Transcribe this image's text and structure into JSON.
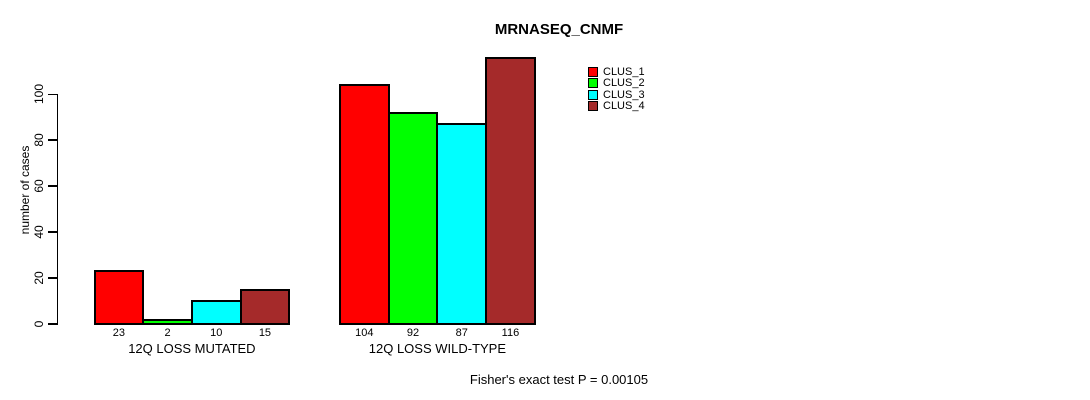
{
  "chart_data": {
    "type": "bar",
    "title": "MRNASEQ_CNMF",
    "ylabel": "number of cases",
    "xlabel": "",
    "categories": [
      "12Q LOSS MUTATED",
      "12Q LOSS WILD-TYPE"
    ],
    "series": [
      {
        "name": "CLUS_1",
        "color": "#ff0000",
        "values": [
          23,
          104
        ]
      },
      {
        "name": "CLUS_2",
        "color": "#00ff00",
        "values": [
          2,
          92
        ]
      },
      {
        "name": "CLUS_3",
        "color": "#00ffff",
        "values": [
          10,
          87
        ]
      },
      {
        "name": "CLUS_4",
        "color": "#a52a2a",
        "values": [
          15,
          116
        ]
      }
    ],
    "bar_value_labels_shown": true,
    "yticks": [
      0,
      20,
      40,
      60,
      80,
      100
    ],
    "ylim": [
      0,
      120
    ],
    "grid": false,
    "legend_position": "top-right",
    "annotation": "Fisher's exact test P = 0.00105"
  },
  "colors": {
    "axis": "#000000",
    "text": "#000000",
    "background": "#ffffff",
    "bar_border": "#000000"
  }
}
